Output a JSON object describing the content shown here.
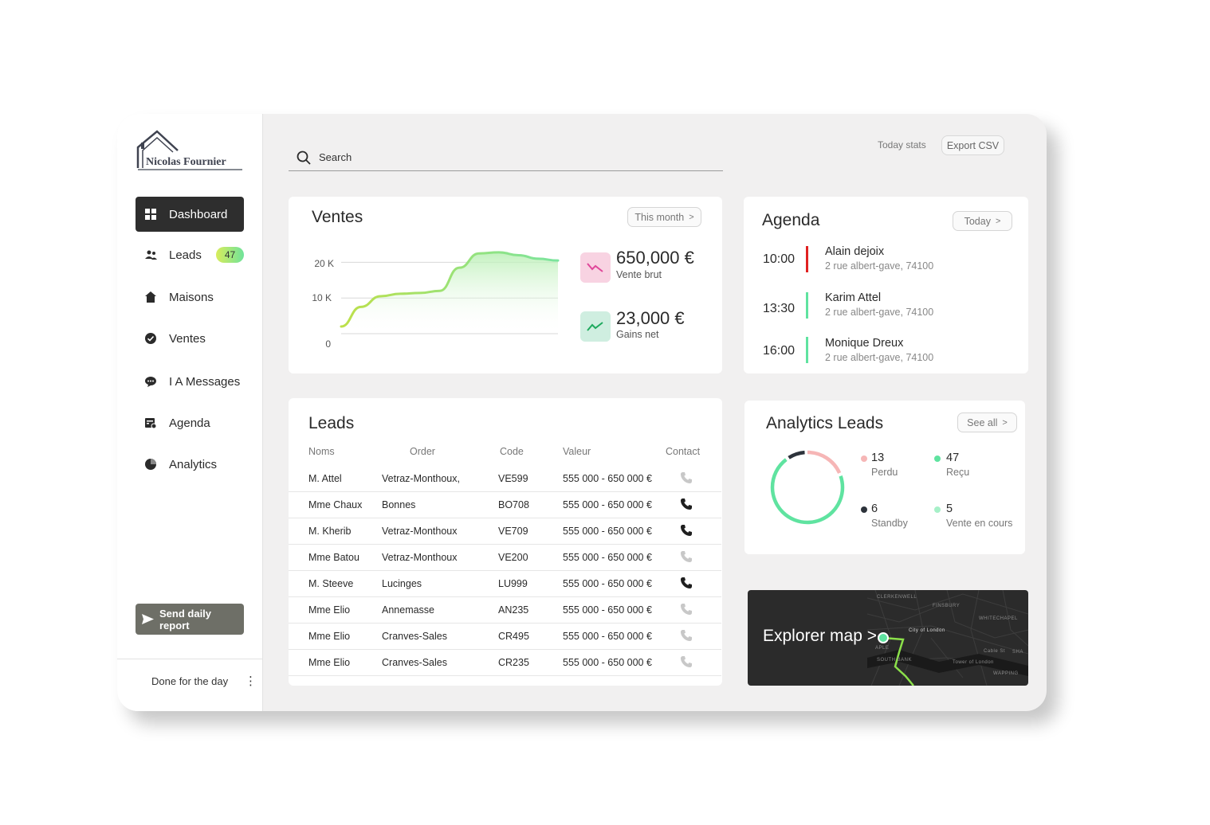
{
  "brand": {
    "name": "Nicolas Fournier"
  },
  "sidebar": {
    "items": [
      {
        "label": "Dashboard",
        "icon": "grid-icon",
        "active": true
      },
      {
        "label": "Leads",
        "icon": "users-icon",
        "badge": "47"
      },
      {
        "label": "Maisons",
        "icon": "house-icon"
      },
      {
        "label": "Ventes",
        "icon": "check-circle-icon"
      },
      {
        "label": "I A Messages",
        "icon": "chat-icon"
      },
      {
        "label": "Agenda",
        "icon": "calendar-icon"
      },
      {
        "label": "Analytics",
        "icon": "pie-chart-icon"
      }
    ],
    "report_button": "Send daily report",
    "footer_text": "Done for the day",
    "footer_menu": "⋮"
  },
  "header": {
    "search_placeholder": "Search",
    "today_stats": "Today stats",
    "export_button": "Export CSV"
  },
  "ventes": {
    "title": "Ventes",
    "filter": "This month",
    "filter_chevron": ">",
    "stat1_value": "650,000 €",
    "stat1_label": "Vente brut",
    "stat2_value": "23,000 €",
    "stat2_label": "Gains net",
    "colors": {
      "line": "#8ee07a",
      "down": "#e0479a",
      "up": "#1eaa5e"
    }
  },
  "chart_data": {
    "type": "area",
    "title": "Ventes",
    "y_ticks": [
      "20 K",
      "10 K",
      "0"
    ],
    "ylim": [
      0,
      25000
    ],
    "x": [
      0,
      1,
      2,
      3,
      4,
      5,
      6,
      7,
      8,
      9,
      10,
      11
    ],
    "values": [
      2000,
      7500,
      10500,
      11200,
      11400,
      12000,
      18500,
      22500,
      22800,
      22000,
      21000,
      20500
    ],
    "grid": true,
    "legend": "none"
  },
  "agenda": {
    "title": "Agenda",
    "filter": "Today",
    "filter_chevron": ">",
    "items": [
      {
        "time": "10:00",
        "name": "Alain dejoix",
        "address": "2 rue albert-gave, 74100",
        "color": "#e02121"
      },
      {
        "time": "13:30",
        "name": "Karim Attel",
        "address": "2 rue albert-gave, 74100",
        "color": "#5fe3a0"
      },
      {
        "time": "16:00",
        "name": "Monique Dreux",
        "address": "2 rue albert-gave, 74100",
        "color": "#5fe3a0"
      }
    ]
  },
  "leads": {
    "title": "Leads",
    "columns": [
      "Noms",
      "Order",
      "Code",
      "Valeur",
      "Contact"
    ],
    "rows": [
      {
        "nom": "M. Attel",
        "order": "Vetraz-Monthoux,",
        "code": "VE599",
        "valeur": "555 000 - 650 000 €",
        "contact_active": false
      },
      {
        "nom": "Mme Chaux",
        "order": "Bonnes",
        "code": "BO708",
        "valeur": "555 000 - 650 000 €",
        "contact_active": true
      },
      {
        "nom": "M. Kherib",
        "order": "Vetraz-Monthoux",
        "code": "VE709",
        "valeur": "555 000 - 650 000 €",
        "contact_active": true
      },
      {
        "nom": "Mme Batou",
        "order": "Vetraz-Monthoux",
        "code": "VE200",
        "valeur": "555 000 - 650 000 €",
        "contact_active": false
      },
      {
        "nom": "M. Steeve",
        "order": "Lucinges",
        "code": "LU999",
        "valeur": "555 000 - 650 000 €",
        "contact_active": true
      },
      {
        "nom": "Mme Elio",
        "order": "Annemasse",
        "code": "AN235",
        "valeur": "555 000 - 650 000 €",
        "contact_active": false
      },
      {
        "nom": "Mme Elio",
        "order": "Cranves-Sales",
        "code": "CR495",
        "valeur": "555 000 - 650 000 €",
        "contact_active": false
      },
      {
        "nom": "Mme Elio",
        "order": "Cranves-Sales",
        "code": "CR235",
        "valeur": "555 000 - 650 000 €",
        "contact_active": false
      }
    ]
  },
  "analytics": {
    "title": "Analytics Leads",
    "filter": "See all",
    "filter_chevron": ">",
    "legend": [
      {
        "value": "13",
        "label": "Perdu",
        "color": "#f6b6b6"
      },
      {
        "value": "47",
        "label": "Reçu",
        "color": "#5fe3a0"
      },
      {
        "value": "6",
        "label": "Standby",
        "color": "#2d333b"
      },
      {
        "value": "5",
        "label": "Vente en cours",
        "color": "#a6f0c8"
      }
    ]
  },
  "map": {
    "title": "Explorer map",
    "chevron": ">",
    "labels": [
      "CLERKENWELL",
      "FINSBURY",
      "WHITECHAPEL",
      "City of London",
      "SOUTH BANK",
      "Tower of London",
      "Cable St",
      "SHA",
      "WAPPING",
      "APLE"
    ],
    "route_color": "#8be04a"
  }
}
